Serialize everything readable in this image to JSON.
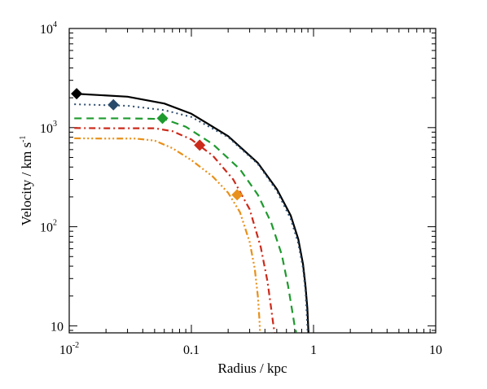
{
  "chart_data": {
    "type": "line",
    "x_scale": "log",
    "y_scale": "log",
    "xlim": [
      0.01,
      10
    ],
    "ylim": [
      8.5,
      10000
    ],
    "xlabel": "Radius / kpc",
    "ylabel": "Velocity / km s",
    "ylabel_sup": "-1",
    "x_ticks": [
      {
        "value": 0.01,
        "base": "10",
        "exp": "-2"
      },
      {
        "value": 0.1,
        "base": "0.1",
        "exp": ""
      },
      {
        "value": 1,
        "base": "1",
        "exp": ""
      },
      {
        "value": 10,
        "base": "10",
        "exp": ""
      }
    ],
    "y_ticks": [
      {
        "value": 10,
        "base": "10",
        "exp": ""
      },
      {
        "value": 100,
        "base": "10",
        "exp": "2"
      },
      {
        "value": 1000,
        "base": "10",
        "exp": "3"
      },
      {
        "value": 10000,
        "base": "10",
        "exp": "4"
      }
    ],
    "series": [
      {
        "color": "#000000",
        "dash": "",
        "width": 2.2,
        "x": [
          0.011,
          0.03,
          0.06,
          0.1,
          0.2,
          0.35,
          0.5,
          0.65,
          0.75,
          0.82,
          0.86,
          0.89,
          0.9,
          0.905,
          0.91
        ],
        "y": [
          2200,
          2050,
          1750,
          1380,
          820,
          440,
          240,
          130,
          75,
          42,
          25,
          15,
          11,
          9.5,
          8.6
        ],
        "marker": {
          "x": 0.0115,
          "y": 2200
        }
      },
      {
        "color": "#2a4a6b",
        "dash": "2,4",
        "width": 2,
        "x": [
          0.011,
          0.03,
          0.06,
          0.1,
          0.2,
          0.35,
          0.5,
          0.65,
          0.75,
          0.82,
          0.86,
          0.88,
          0.89,
          0.895
        ],
        "y": [
          1720,
          1660,
          1500,
          1280,
          800,
          430,
          230,
          120,
          68,
          38,
          22,
          13,
          10,
          8.6
        ],
        "marker": {
          "x": 0.023,
          "y": 1700
        }
      },
      {
        "color": "#1e9a2e",
        "dash": "9,6",
        "width": 2.2,
        "x": [
          0.011,
          0.03,
          0.06,
          0.09,
          0.15,
          0.25,
          0.35,
          0.45,
          0.55,
          0.62,
          0.67,
          0.7,
          0.72
        ],
        "y": [
          1240,
          1240,
          1220,
          1020,
          680,
          380,
          210,
          110,
          52,
          25,
          14,
          10,
          8.6
        ],
        "marker": {
          "x": 0.058,
          "y": 1240
        }
      },
      {
        "color": "#cc2a1a",
        "dash": "8,4,2,4",
        "width": 2.2,
        "x": [
          0.011,
          0.02,
          0.05,
          0.07,
          0.1,
          0.15,
          0.22,
          0.3,
          0.37,
          0.42,
          0.45,
          0.47,
          0.48
        ],
        "y": [
          990,
          985,
          985,
          920,
          760,
          520,
          300,
          150,
          62,
          28,
          15,
          10,
          8.6
        ],
        "marker": {
          "x": 0.117,
          "y": 665
        }
      },
      {
        "color": "#e8901a",
        "dash": "8,3,2,3,2,3,2,3",
        "width": 2.2,
        "x": [
          0.011,
          0.02,
          0.035,
          0.05,
          0.07,
          0.1,
          0.15,
          0.2,
          0.25,
          0.3,
          0.33,
          0.35,
          0.36,
          0.365
        ],
        "y": [
          780,
          775,
          775,
          740,
          620,
          470,
          320,
          220,
          140,
          70,
          38,
          20,
          12,
          8.6
        ],
        "marker": {
          "x": 0.237,
          "y": 210
        }
      }
    ]
  }
}
